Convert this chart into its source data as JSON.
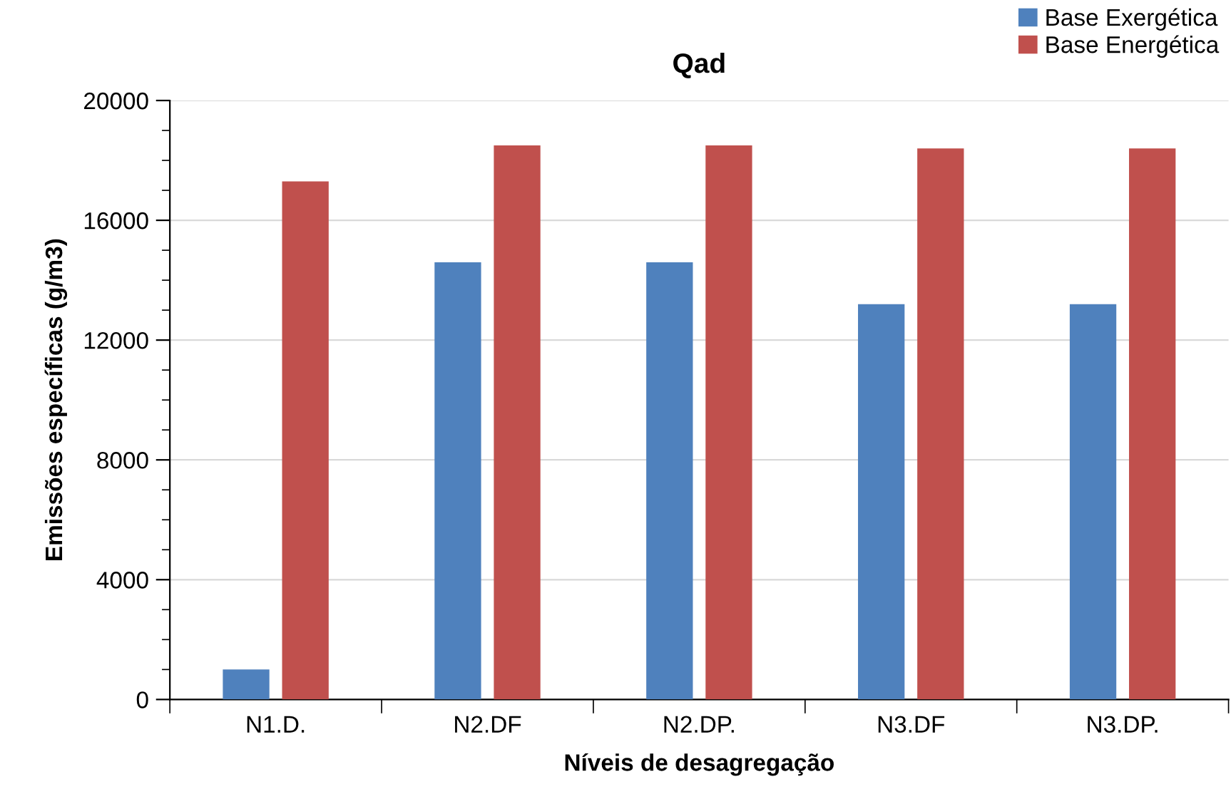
{
  "chart_data": {
    "type": "bar",
    "title": "Qad",
    "xlabel": "Níveis de desagregação",
    "ylabel": "Emissões específicas (g/m3)",
    "categories": [
      "N1.D.",
      "N2.DF",
      "N2.DP.",
      "N3.DF",
      "N3.DP."
    ],
    "series": [
      {
        "name": "Base Exergética",
        "color": "#4f81bd",
        "values": [
          1000,
          14600,
          14600,
          13200,
          13200
        ]
      },
      {
        "name": "Base Energética",
        "color": "#c0504d",
        "values": [
          17300,
          18500,
          18500,
          18400,
          18400
        ]
      }
    ],
    "ylim": [
      0,
      20000
    ],
    "yticks": [
      0,
      4000,
      8000,
      12000,
      16000,
      20000
    ],
    "grid": "y",
    "legend": "top right"
  }
}
